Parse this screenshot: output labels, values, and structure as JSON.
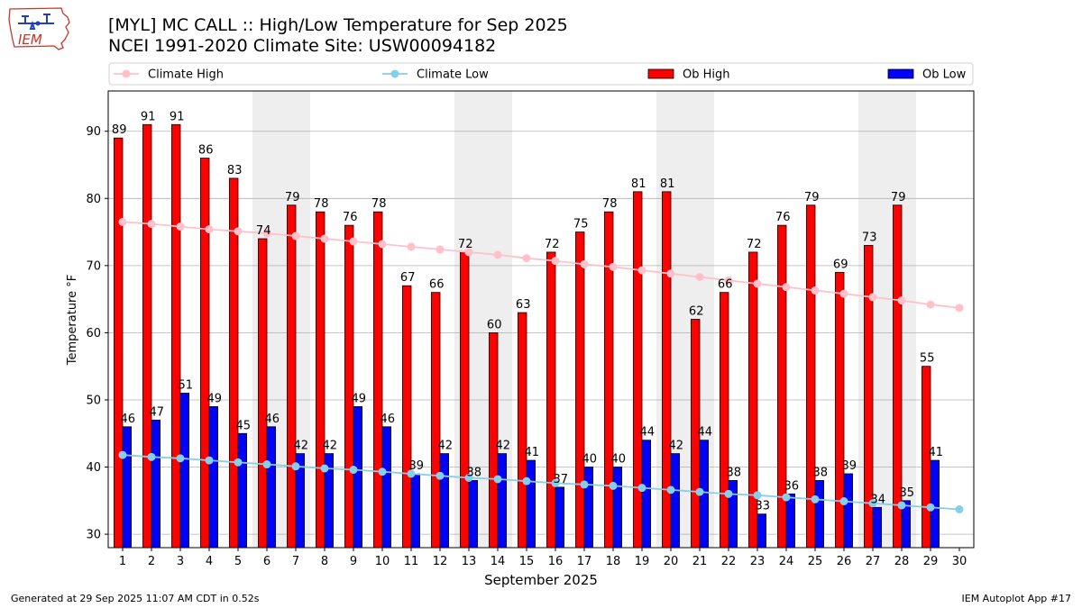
{
  "header": {
    "title_line1": "[MYL] MC CALL :: High/Low Temperature for Sep 2025",
    "title_line2": "NCEI 1991-2020 Climate Site: USW00094182",
    "logo_text": "IEM"
  },
  "footer": {
    "generated": "Generated at 29 Sep 2025 11:07 AM CDT in 0.52s",
    "app": "IEM Autoplot App #17"
  },
  "colors": {
    "ob_high": "#ff0000",
    "ob_low": "#0000ff",
    "climate_high": "#ffc0cb",
    "climate_low": "#87ceeb",
    "weekend_band": "#eeeeee",
    "grid": "#b0b0b0"
  },
  "chart_data": {
    "type": "bar",
    "xlabel": "September 2025",
    "ylabel": "Temperature °F",
    "xlim": [
      0.5,
      30.5
    ],
    "ylim": [
      28,
      96
    ],
    "yticks": [
      30,
      40,
      50,
      60,
      70,
      80,
      90
    ],
    "grid": "horizontal",
    "legend_position": "top",
    "categories": [
      "1",
      "2",
      "3",
      "4",
      "5",
      "6",
      "7",
      "8",
      "9",
      "10",
      "11",
      "12",
      "13",
      "14",
      "15",
      "16",
      "17",
      "18",
      "19",
      "20",
      "21",
      "22",
      "23",
      "24",
      "25",
      "26",
      "27",
      "28",
      "29",
      "30"
    ],
    "shaded_days": [
      [
        6,
        7
      ],
      [
        13,
        14
      ],
      [
        20,
        21
      ],
      [
        27,
        28
      ]
    ],
    "series": [
      {
        "name": "Climate High",
        "kind": "line",
        "values": [
          76.5,
          76.2,
          75.8,
          75.4,
          75.1,
          74.8,
          74.4,
          74.0,
          73.6,
          73.2,
          72.8,
          72.4,
          72.0,
          71.6,
          71.1,
          70.7,
          70.2,
          69.8,
          69.3,
          68.8,
          68.3,
          67.8,
          67.3,
          66.8,
          66.3,
          65.8,
          65.3,
          64.8,
          64.2,
          63.7
        ]
      },
      {
        "name": "Climate Low",
        "kind": "line",
        "values": [
          41.8,
          41.5,
          41.3,
          41.0,
          40.7,
          40.4,
          40.1,
          39.8,
          39.6,
          39.3,
          39.0,
          38.7,
          38.4,
          38.2,
          37.9,
          37.6,
          37.4,
          37.2,
          36.9,
          36.6,
          36.3,
          36.0,
          35.8,
          35.5,
          35.2,
          34.9,
          34.6,
          34.3,
          34.0,
          33.7
        ]
      },
      {
        "name": "Ob High",
        "kind": "bar",
        "values": [
          89,
          91,
          91,
          86,
          83,
          74,
          79,
          78,
          76,
          78,
          67,
          66,
          72,
          60,
          63,
          72,
          75,
          78,
          81,
          81,
          62,
          66,
          72,
          76,
          79,
          69,
          73,
          79,
          55,
          null
        ]
      },
      {
        "name": "Ob Low",
        "kind": "bar",
        "values": [
          46,
          47,
          51,
          49,
          45,
          46,
          42,
          42,
          49,
          46,
          39,
          42,
          38,
          42,
          41,
          37,
          40,
          40,
          44,
          42,
          44,
          38,
          33,
          36,
          38,
          39,
          34,
          35,
          41,
          null
        ]
      }
    ]
  }
}
